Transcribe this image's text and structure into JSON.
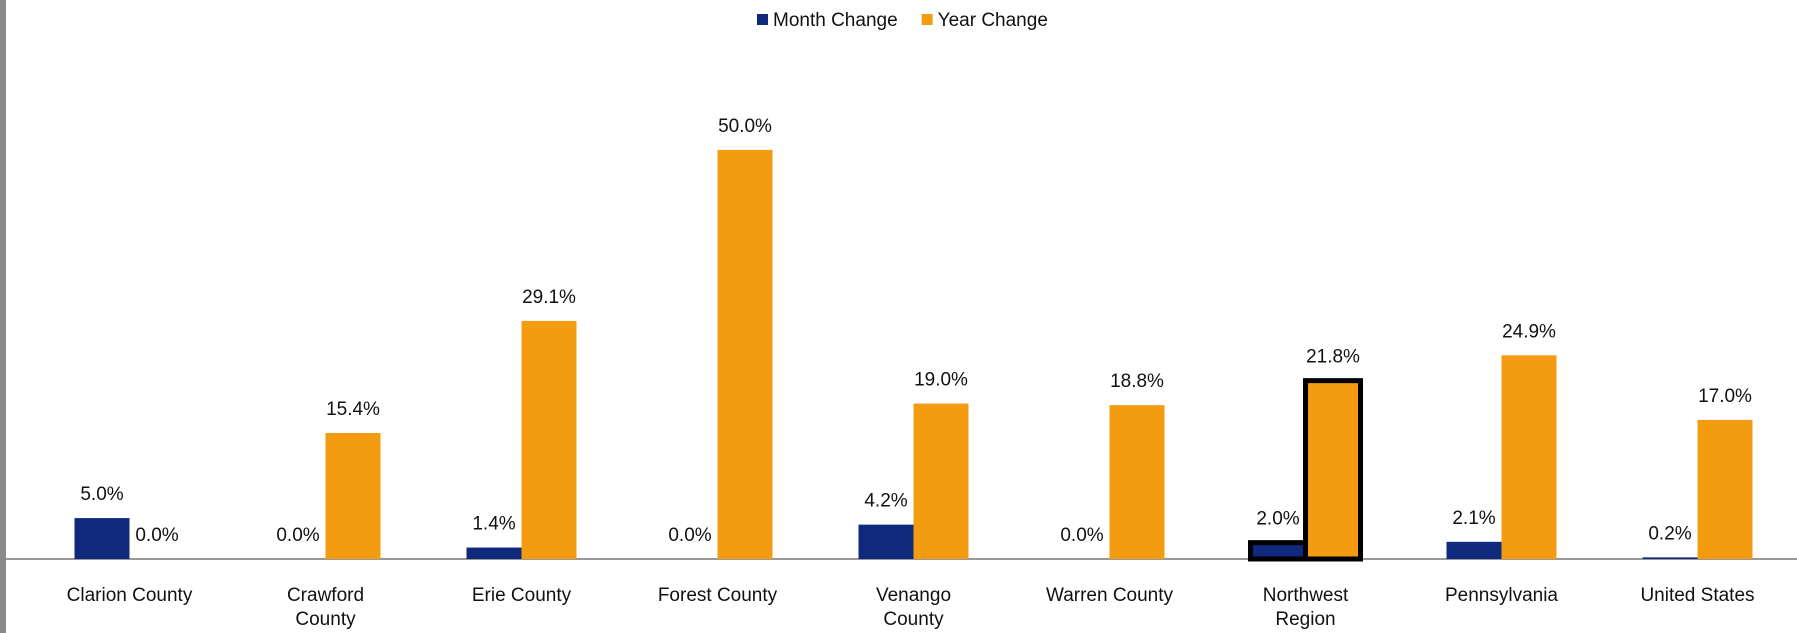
{
  "chart_data": {
    "type": "bar",
    "categories": [
      "Clarion County",
      "Crawford County",
      "Erie County",
      "Forest County",
      "Venango County",
      "Warren County",
      "Northwest Region",
      "Pennsylvania",
      "United States"
    ],
    "series": [
      {
        "name": "Month Change",
        "color": "#0f2a7c",
        "values": [
          5.0,
          0.0,
          1.4,
          0.0,
          4.2,
          0.0,
          2.0,
          2.1,
          0.2
        ],
        "value_labels": [
          "5.0%",
          "0.0%",
          "1.4%",
          "0.0%",
          "4.2%",
          "0.0%",
          "2.0%",
          "2.1%",
          "0.2%"
        ]
      },
      {
        "name": "Year Change",
        "color": "#f39c12",
        "values": [
          0.0,
          15.4,
          29.1,
          50.0,
          19.0,
          18.8,
          21.8,
          24.9,
          17.0
        ],
        "value_labels": [
          "0.0%",
          "15.4%",
          "29.1%",
          "50.0%",
          "19.0%",
          "18.8%",
          "21.8%",
          "24.9%",
          "17.0%"
        ]
      }
    ],
    "ylim": [
      0,
      55
    ],
    "legend": "top",
    "outlined_category": "Northwest Region"
  }
}
